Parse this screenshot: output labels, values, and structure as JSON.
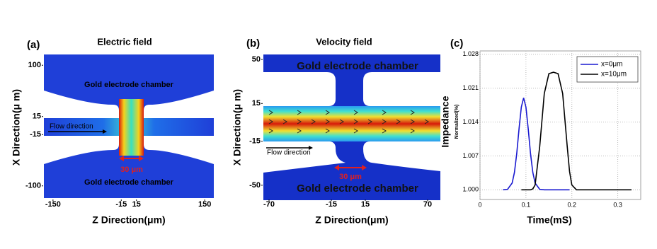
{
  "chart_data": [
    {
      "type": "field",
      "panel_label": "(a)",
      "title": "Electric field",
      "xlabel": "Z Direction(μm)",
      "ylabel": "X Direction(μ m)",
      "xlim": [
        -168,
        168
      ],
      "ylim": [
        -112,
        112
      ],
      "xticks": [
        -150,
        -15,
        15,
        150
      ],
      "yticks": [
        100,
        15,
        -15,
        -100
      ],
      "annotations": [
        "Gold electrode chamber",
        "Flow direction",
        "30 μm",
        "Gold electrode chamber"
      ]
    },
    {
      "type": "field",
      "panel_label": "(b)",
      "title": "Velocity field",
      "xlabel": "Z Direction(μm)",
      "ylabel": "X Direction(μ m)",
      "xlim": [
        -75,
        75
      ],
      "ylim": [
        -54,
        54
      ],
      "xticks": [
        -70,
        -15,
        15,
        70
      ],
      "yticks": [
        50,
        15,
        -15,
        -50
      ],
      "annotations": [
        "Gold electrode chamber",
        "Flow direction",
        "30 μm",
        "Gold electrode chamber"
      ]
    },
    {
      "type": "line",
      "panel_label": "(c)",
      "xlabel": "Time(mS)",
      "ylabel": "Impedance",
      "ylabel_note": "Normalized(%)",
      "xlim": [
        0,
        0.35
      ],
      "ylim": [
        0.998,
        1.0287
      ],
      "grid": true,
      "legend": "top-right",
      "xticks": [
        0,
        0.1,
        0.2,
        0.3
      ],
      "yticks": [
        {
          "value": 1.0,
          "label": "1.000"
        },
        {
          "value": 1.007,
          "label": "1.007"
        },
        {
          "value": 1.014,
          "label": "1.014"
        },
        {
          "value": 1.021,
          "label": "1.021"
        },
        {
          "value": 1.028,
          "label": "1.028"
        }
      ],
      "x": [
        0.05,
        0.06,
        0.07,
        0.075,
        0.08,
        0.085,
        0.09,
        0.095,
        0.1,
        0.105,
        0.11,
        0.115,
        0.12,
        0.13,
        0.14,
        0.15,
        0.16,
        0.17,
        0.18,
        0.19,
        0.195,
        0.2,
        0.21,
        0.22,
        0.23,
        0.25,
        0.28,
        0.31,
        0.33
      ],
      "series": [
        {
          "name": "x=0μm",
          "color": "#1a1ad0",
          "values": [
            1.0,
            1.0001,
            1.0014,
            1.0036,
            1.0075,
            1.0126,
            1.0171,
            1.019,
            1.0171,
            1.0126,
            1.0075,
            1.0036,
            1.0014,
            1.0001,
            1.0,
            1.0,
            1.0,
            1.0,
            1.0,
            1.0,
            1.0,
            null,
            null,
            null,
            null,
            null,
            null,
            null,
            null
          ]
        },
        {
          "name": "x=10μm",
          "color": "#000000",
          "values": [
            null,
            null,
            null,
            null,
            null,
            null,
            1.0,
            1.0,
            1.0,
            1.0,
            1.0,
            1.0002,
            1.001,
            1.0089,
            1.0199,
            1.024,
            1.0243,
            1.024,
            1.0199,
            1.0089,
            1.0038,
            1.001,
            1.0,
            1.0,
            1.0,
            1.0,
            1.0,
            1.0,
            1.0
          ]
        }
      ]
    }
  ]
}
